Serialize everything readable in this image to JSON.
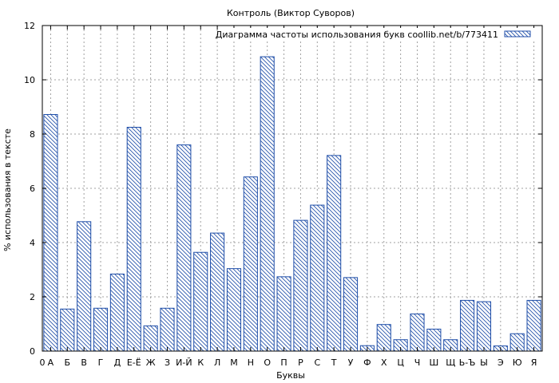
{
  "chart_data": {
    "type": "bar",
    "title": "Контроль (Виктор Суворов)",
    "xlabel": "Буквы",
    "ylabel": "% использования в тексте",
    "legend": "Диаграмма частоты использования букв coollib.net/b/773411",
    "legend_position": "top-right",
    "grid": true,
    "ylim": [
      0,
      12
    ],
    "yticks": [
      0,
      2,
      4,
      6,
      8,
      10,
      12
    ],
    "x_axis_start_label": "0",
    "categories": [
      "А",
      "Б",
      "В",
      "Г",
      "Д",
      "Е-Ё",
      "Ж",
      "З",
      "И-Й",
      "К",
      "Л",
      "М",
      "Н",
      "О",
      "П",
      "Р",
      "С",
      "Т",
      "У",
      "Ф",
      "Х",
      "Ц",
      "Ч",
      "Ш",
      "Щ",
      "Ь-Ъ",
      "Ы",
      "Э",
      "Ю",
      "Я"
    ],
    "values": [
      8.72,
      1.55,
      4.77,
      1.58,
      2.84,
      8.25,
      0.93,
      1.58,
      7.6,
      3.64,
      4.35,
      3.04,
      6.42,
      10.85,
      2.74,
      4.82,
      5.38,
      7.21,
      2.71,
      0.2,
      0.98,
      0.42,
      1.37,
      0.81,
      0.42,
      1.87,
      1.82,
      0.19,
      0.64,
      1.87
    ],
    "colors": {
      "bar_stroke": "#1f4ea8",
      "hatch": "#1f4ea8",
      "grid": "#a0a0a0",
      "axis": "#000000"
    }
  }
}
